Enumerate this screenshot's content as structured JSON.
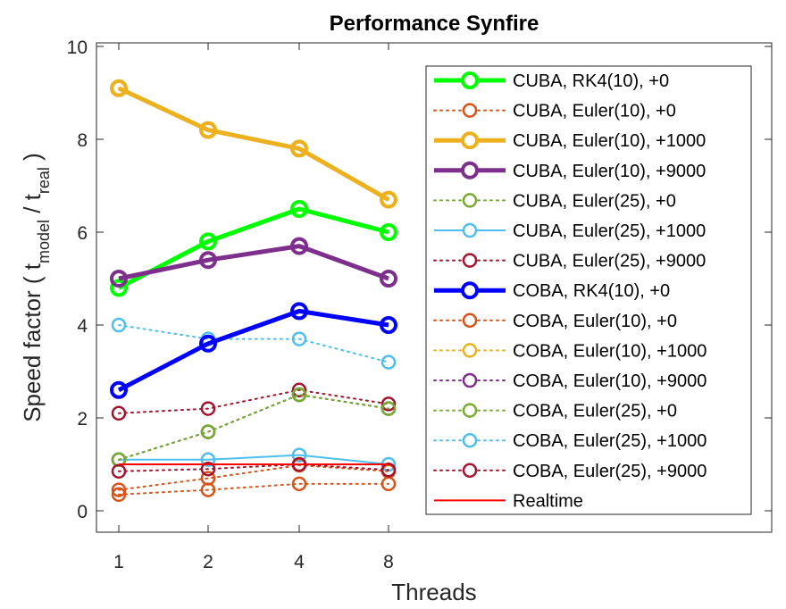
{
  "chart_data": {
    "type": "line",
    "title": "Performance Synfire",
    "xlabel": "Threads",
    "ylabel": {
      "prefix": "Speed factor  ( t",
      "sub1": "model",
      "mid": " / t",
      "sub2": "real",
      "suffix": " )"
    },
    "categories": [
      "1",
      "2",
      "4",
      "8"
    ],
    "ylim": [
      -0.5,
      10
    ],
    "yticks": [
      0,
      2,
      4,
      6,
      8,
      10
    ],
    "grid": false,
    "legend_position": "top-right",
    "series": [
      {
        "name": "CUBA, RK4(10), +0",
        "values": [
          4.8,
          5.8,
          6.5,
          6.0
        ],
        "color": "#00ff00",
        "style": "solid",
        "width": 5
      },
      {
        "name": "CUBA, Euler(10), +0",
        "values": [
          0.35,
          0.45,
          0.58,
          0.58
        ],
        "color": "#d95319",
        "style": "dotted",
        "width": 2
      },
      {
        "name": "CUBA, Euler(10), +1000",
        "values": [
          9.1,
          8.2,
          7.8,
          6.7
        ],
        "color": "#edb120",
        "style": "solid",
        "width": 5
      },
      {
        "name": "CUBA, Euler(10), +9000",
        "values": [
          5.0,
          5.4,
          5.7,
          5.0
        ],
        "color": "#7e2f8e",
        "style": "solid",
        "width": 5
      },
      {
        "name": "CUBA, Euler(25), +0",
        "values": [
          1.1,
          1.7,
          2.5,
          2.2
        ],
        "color": "#77ac30",
        "style": "dotted",
        "width": 2
      },
      {
        "name": "CUBA, Euler(25), +1000",
        "values": [
          1.1,
          1.1,
          1.2,
          1.0
        ],
        "color": "#4dbeee",
        "style": "solid",
        "width": 2
      },
      {
        "name": "CUBA, Euler(25), +9000",
        "values": [
          2.1,
          2.2,
          2.6,
          2.3
        ],
        "color": "#a2142f",
        "style": "dotted",
        "width": 2
      },
      {
        "name": "COBA, RK4(10), +0",
        "values": [
          2.6,
          3.6,
          4.3,
          4.0
        ],
        "color": "#0000ff",
        "style": "solid",
        "width": 5
      },
      {
        "name": "COBA, Euler(10), +0",
        "values": [
          0.45,
          0.7,
          0.98,
          0.85
        ],
        "color": "#d95319",
        "style": "dotted",
        "width": 2
      },
      {
        "name": "COBA, Euler(10), +1000",
        "values": [
          9.1,
          8.2,
          7.8,
          6.7
        ],
        "color": "#edb120",
        "style": "dotted",
        "width": 2
      },
      {
        "name": "COBA, Euler(10), +9000",
        "values": [
          1.1,
          1.7,
          2.5,
          2.2
        ],
        "color": "#7e2f8e",
        "style": "dotted",
        "width": 2
      },
      {
        "name": "COBA, Euler(25), +0",
        "values": [
          1.1,
          1.7,
          2.5,
          2.2
        ],
        "color": "#77ac30",
        "style": "dotted",
        "width": 2
      },
      {
        "name": "COBA, Euler(25), +1000",
        "values": [
          4.0,
          3.7,
          3.7,
          3.2
        ],
        "color": "#4dbeee",
        "style": "dotted",
        "width": 2
      },
      {
        "name": "COBA, Euler(25), +9000",
        "values": [
          0.85,
          0.9,
          1.0,
          0.88
        ],
        "color": "#a2142f",
        "style": "dotted",
        "width": 2
      },
      {
        "name": "Realtime",
        "values": [
          1,
          1,
          1,
          1
        ],
        "color": "#ff0000",
        "style": "solid",
        "width": 2,
        "marker": false
      }
    ]
  }
}
